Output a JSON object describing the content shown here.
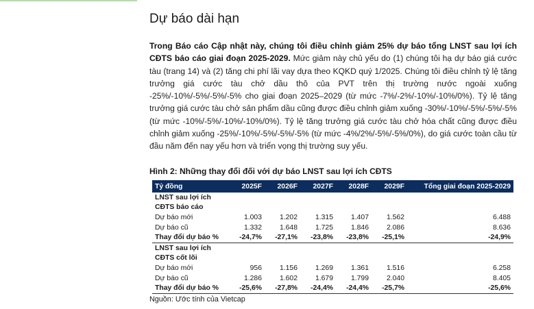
{
  "heading": "Dự báo dài hạn",
  "paragraph": {
    "bold": "Trong Báo cáo Cập nhật này, chúng tôi điều chỉnh giảm 25% dự báo tổng LNST sau lợi ích CĐTS báo cáo giai đoạn 2025-2029.",
    "body": " Mức giảm này chủ yếu do (1) chúng tôi hạ dự báo giá cước tàu (trang 14) và (2) tăng chi phí lãi vay dựa theo KQKD quý 1/2025. Chúng tôi điều chỉnh tỷ lệ tăng trưởng giá cước tàu chở dầu thô của PVT trên thị trường nước ngoài xuống -25%/-10%/-5%/-5%/-5% cho giai đoạn 2025–2029 (từ mức -7%/-2%/-10%/-10%/0%). Tỷ lệ tăng trưởng giá cước tàu chở sản phẩm dầu cũng được điều chỉnh giảm xuống -30%/-10%/-5%/-5%/-5% (từ mức -10%/-5%/-10%/-10%/0%). Tỷ lệ tăng trưởng giá cước tàu chở hóa chất cũng được điều chỉnh giảm xuống -25%/-10%/-5%/-5%/-5% (từ mức -4%/2%/-5%/-5%/0%), do giá cước toàn cầu từ đầu năm đến nay yếu hơn và triển vọng thị trường suy yếu."
  },
  "figure": {
    "title": "Hình 2: Những thay đổi đối với dự báo LNST sau lợi ích CĐTS",
    "header": [
      "Tỷ đồng",
      "2025F",
      "2026F",
      "2027F",
      "2028F",
      "2029F",
      "Tổng giai đoạn 2025-2029"
    ],
    "rows": [
      [
        "LNST sau lợi ích",
        "",
        "",
        "",
        "",
        "",
        ""
      ],
      [
        "CĐTS báo cáo",
        "",
        "",
        "",
        "",
        "",
        ""
      ],
      [
        "Dự báo mới",
        "1.003",
        "1.202",
        "1.315",
        "1.407",
        "1.562",
        "6.488"
      ],
      [
        "Dự báo cũ",
        "1.332",
        "1.648",
        "1.725",
        "1.846",
        "2.086",
        "8.636"
      ],
      [
        "Thay đổi dự báo %",
        "-24,7%",
        "-27,1%",
        "-23,8%",
        "-23,8%",
        "-25,1%",
        "-24,9%"
      ],
      [
        "LNST sau lợi ích",
        "",
        "",
        "",
        "",
        "",
        ""
      ],
      [
        "CĐTS cốt lõi",
        "",
        "",
        "",
        "",
        "",
        ""
      ],
      [
        "Dự báo mới",
        "956",
        "1.156",
        "1.269",
        "1.361",
        "1.516",
        "6.258"
      ],
      [
        "Dự báo cũ",
        "1.286",
        "1.602",
        "1.679",
        "1.799",
        "2.040",
        "8.405"
      ],
      [
        "Thay đổi dự báo %",
        "-25,6%",
        "-27,8%",
        "-24,4%",
        "-24,4%",
        "-25,7%",
        "-25,6%"
      ]
    ],
    "row_kinds": [
      "grp",
      "grp",
      "val",
      "val",
      "chg",
      "grp",
      "grp",
      "val",
      "val",
      "chg"
    ],
    "source": "Nguồn: Ước tính của Vietcap"
  }
}
